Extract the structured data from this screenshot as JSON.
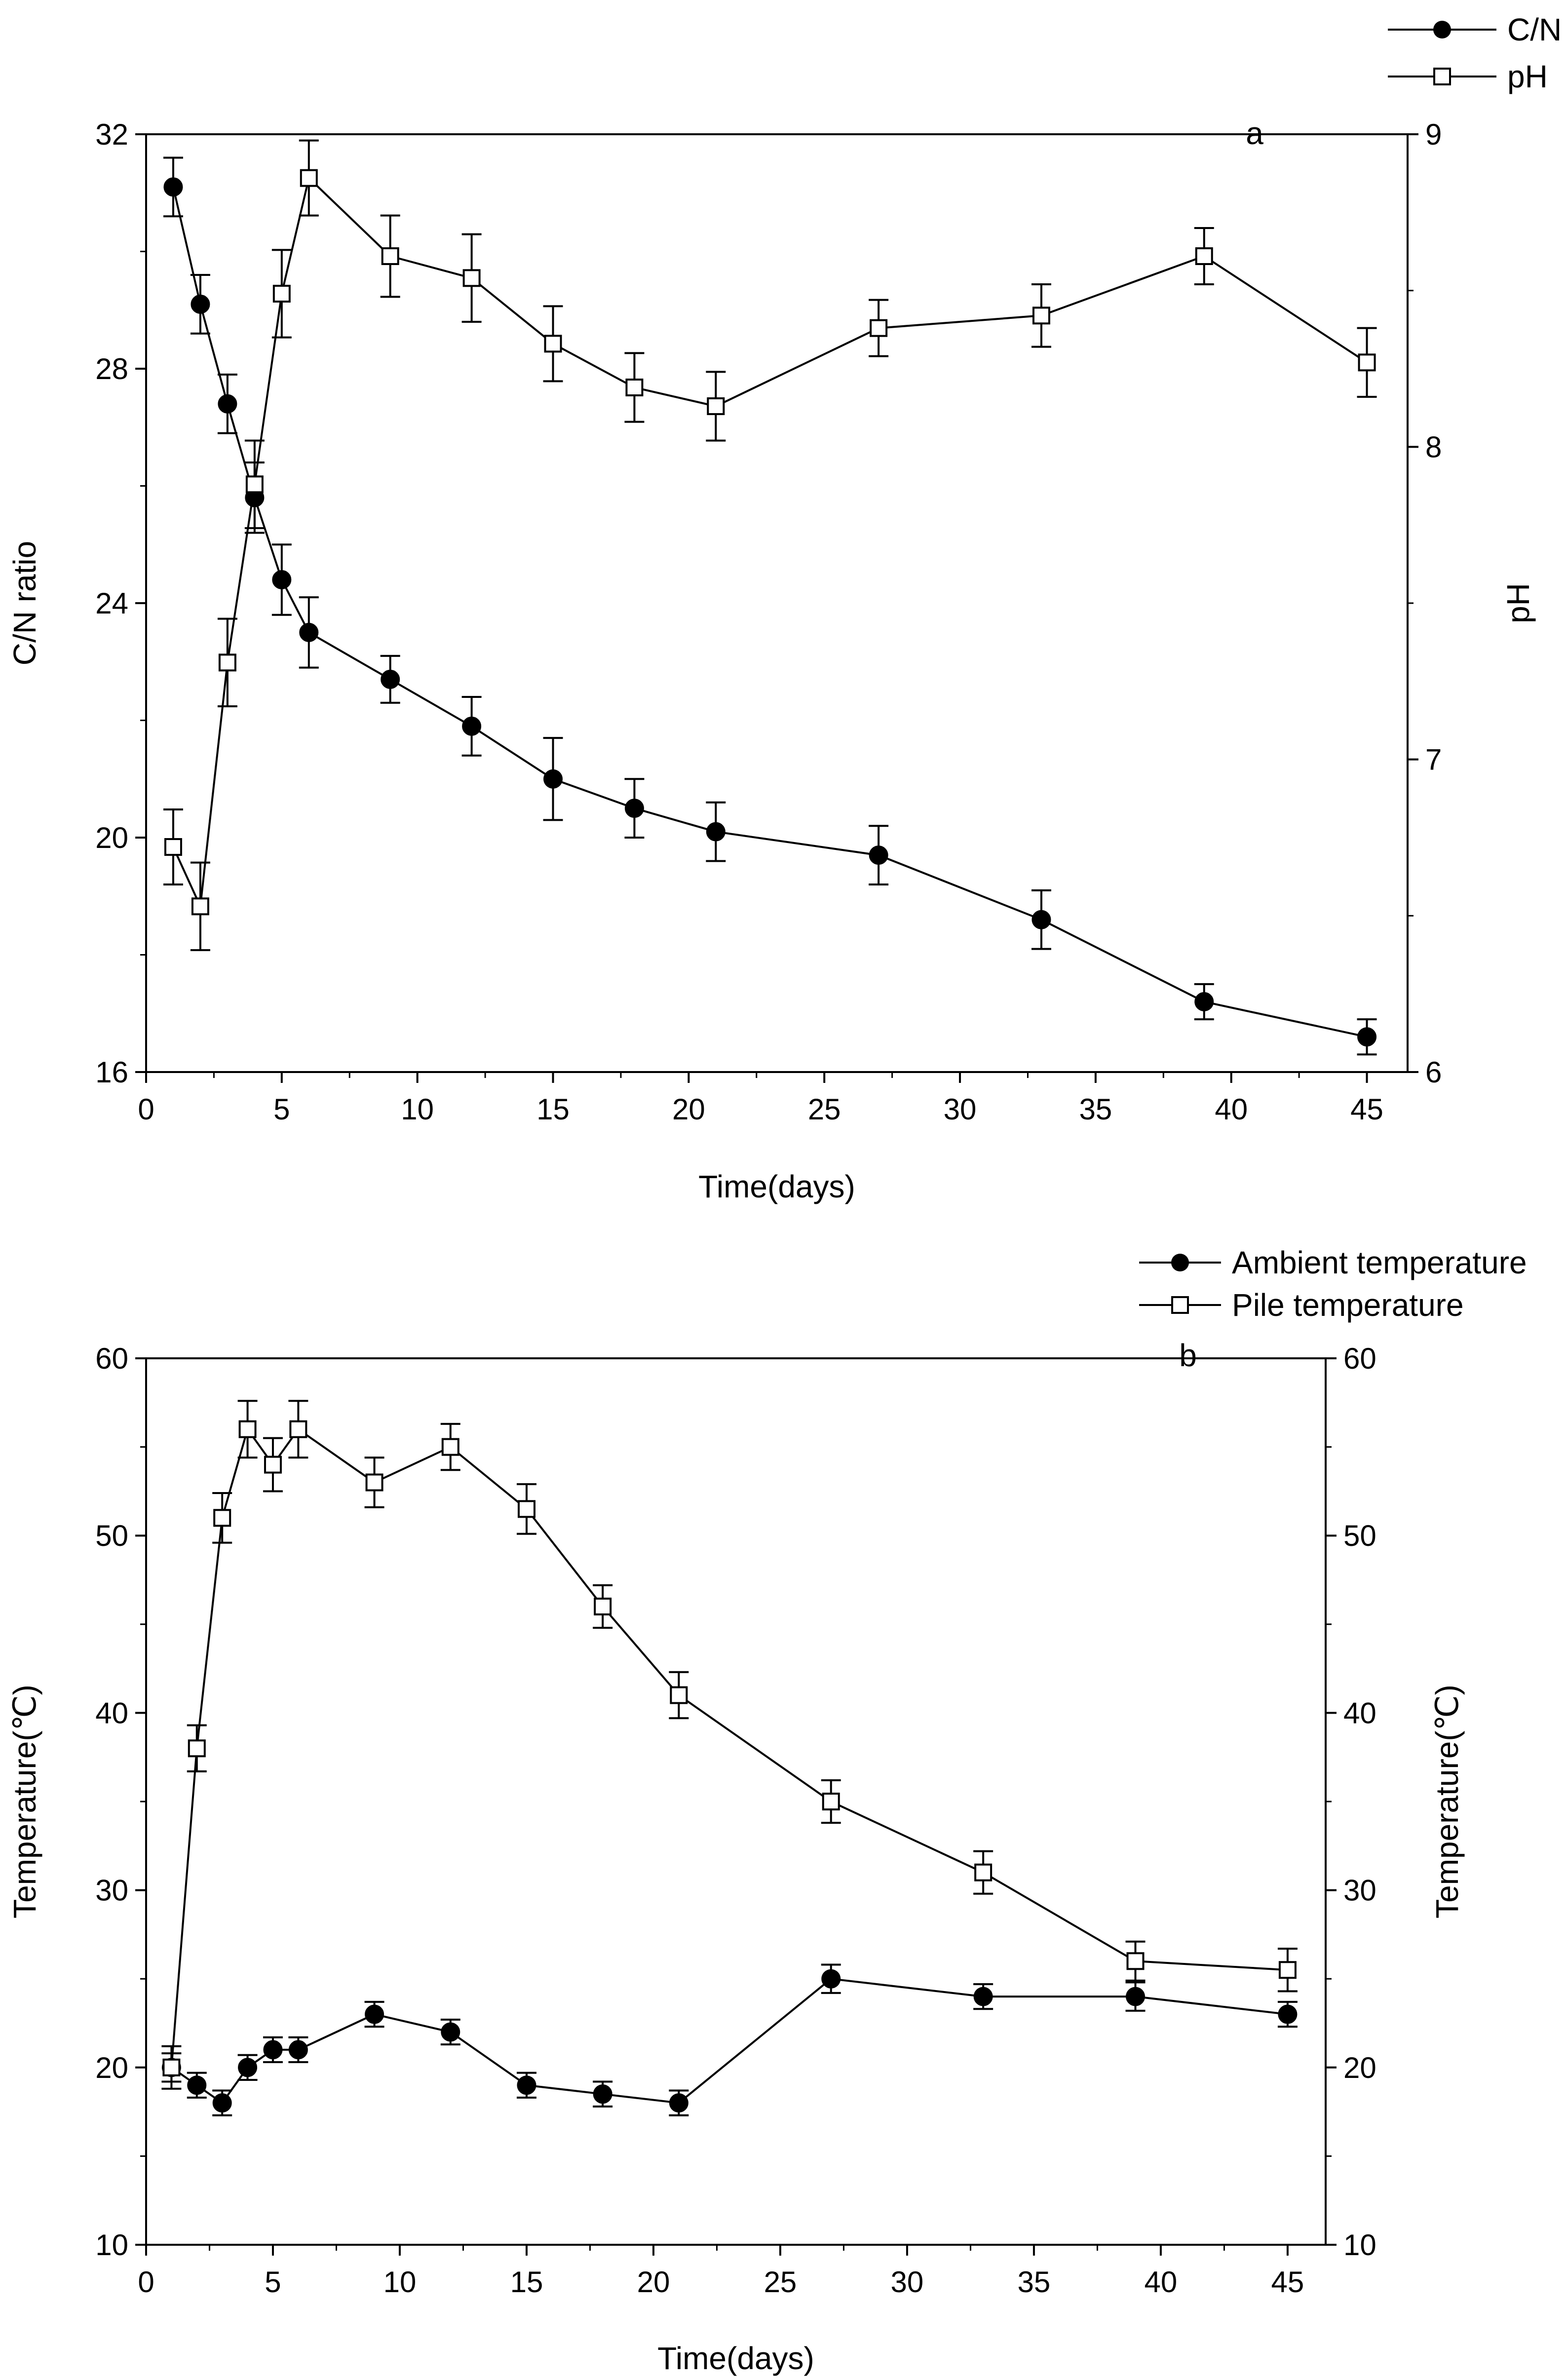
{
  "chart_data": [
    {
      "type": "line",
      "panel_label": "a",
      "xlabel": "Time(days)",
      "ylabel_left": "C/N ratio",
      "ylabel_right": "pH",
      "xlim": [
        0,
        46.5
      ],
      "xticks": [
        0,
        5,
        10,
        15,
        20,
        25,
        30,
        35,
        40,
        45
      ],
      "ylim_left": [
        16,
        32
      ],
      "yticks_left": [
        16,
        20,
        24,
        28,
        32
      ],
      "ylim_right": [
        6,
        9
      ],
      "yticks_right": [
        6,
        7,
        8,
        9
      ],
      "x": [
        1,
        2,
        3,
        4,
        5,
        6,
        9,
        12,
        15,
        18,
        21,
        27,
        33,
        39,
        45
      ],
      "legend_position": "top-right (outside plot)",
      "series": [
        {
          "name": "C/N",
          "axis": "left",
          "marker": "filled-circle",
          "values": [
            31.1,
            29.1,
            27.4,
            25.8,
            24.4,
            23.5,
            22.7,
            21.9,
            21.0,
            20.5,
            20.1,
            19.7,
            18.6,
            17.2,
            16.6
          ],
          "errors": [
            0.5,
            0.5,
            0.5,
            0.6,
            0.6,
            0.6,
            0.4,
            0.5,
            0.7,
            0.5,
            0.5,
            0.5,
            0.5,
            0.3,
            0.3
          ]
        },
        {
          "name": "pH",
          "axis": "right",
          "marker": "open-square",
          "values": [
            6.72,
            6.53,
            7.31,
            7.88,
            8.49,
            8.86,
            8.61,
            8.54,
            8.33,
            8.19,
            8.13,
            8.38,
            8.42,
            8.61,
            8.27
          ],
          "errors": [
            0.12,
            0.14,
            0.14,
            0.14,
            0.14,
            0.12,
            0.13,
            0.14,
            0.12,
            0.11,
            0.11,
            0.09,
            0.1,
            0.09,
            0.11
          ]
        }
      ]
    },
    {
      "type": "line",
      "panel_label": "b",
      "xlabel": "Time(days)",
      "ylabel_left": "Temperature(℃)",
      "ylabel_right": "Temperature(℃)",
      "xlim": [
        0,
        46.5
      ],
      "xticks": [
        0,
        5,
        10,
        15,
        20,
        25,
        30,
        35,
        40,
        45
      ],
      "ylim_left": [
        10,
        60
      ],
      "yticks_left": [
        10,
        20,
        30,
        40,
        50,
        60
      ],
      "ylim_right": [
        10,
        60
      ],
      "yticks_right": [
        10,
        20,
        30,
        40,
        50,
        60
      ],
      "x": [
        1,
        2,
        3,
        4,
        5,
        6,
        9,
        12,
        15,
        18,
        21,
        27,
        33,
        39,
        45
      ],
      "legend_position": "top-right (outside plot)",
      "series": [
        {
          "name": "Ambient temperature",
          "axis": "left",
          "marker": "filled-circle",
          "values": [
            20,
            19,
            18,
            20,
            21,
            21,
            23,
            22,
            19,
            18.5,
            18,
            25,
            24,
            24,
            23
          ],
          "errors": [
            0.8,
            0.7,
            0.7,
            0.7,
            0.7,
            0.7,
            0.7,
            0.7,
            0.7,
            0.7,
            0.7,
            0.8,
            0.7,
            0.8,
            0.7
          ]
        },
        {
          "name": "Pile temperature",
          "axis": "left",
          "marker": "open-square",
          "values": [
            20,
            38,
            51,
            56,
            54,
            56,
            53,
            55,
            51.5,
            46,
            41,
            35,
            31,
            26,
            25.5
          ],
          "errors": [
            1.2,
            1.3,
            1.4,
            1.6,
            1.5,
            1.6,
            1.4,
            1.3,
            1.4,
            1.2,
            1.3,
            1.2,
            1.2,
            1.1,
            1.2
          ]
        }
      ]
    }
  ]
}
